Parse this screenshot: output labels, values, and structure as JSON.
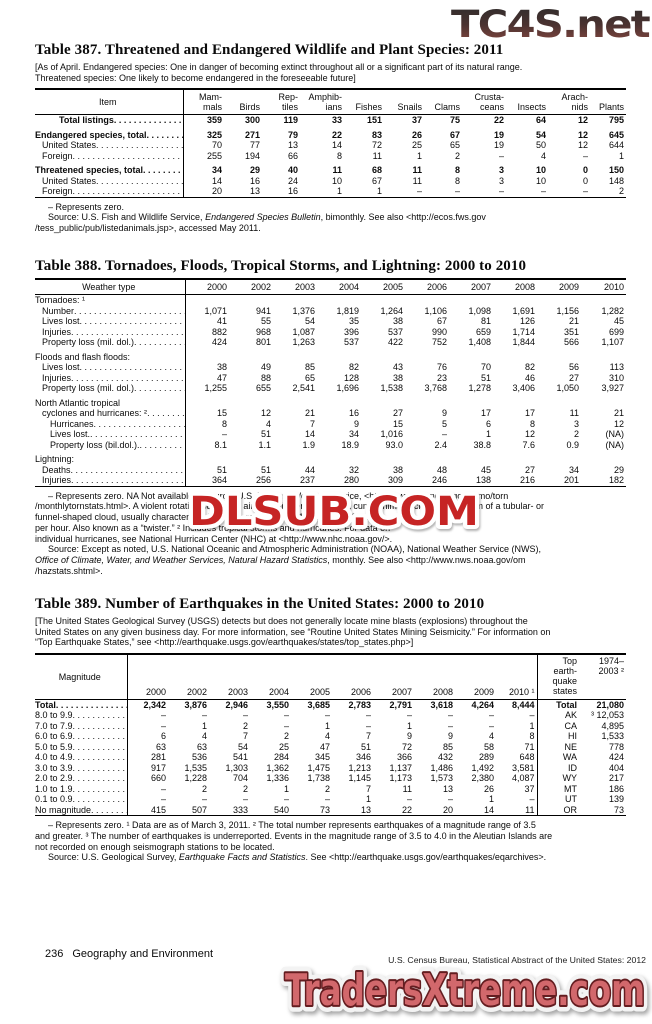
{
  "watermarks": {
    "top": "TC4S.net",
    "middle": "DLSUB.COM",
    "bottom": "TradersXtreme.com"
  },
  "footer": {
    "page_number": "236",
    "section_name": "Geography and Environment",
    "source_line": "U.S. Census Bureau, Statistical Abstract of the United States: 2012"
  },
  "t387": {
    "title": "Table 387. Threatened and Endangered Wildlife and Plant Species: 2011",
    "note": "[As of April. Endangered species: One in danger of becoming extinct  throughout all or a significant part of its natural range.\nThreatened species: One likely to become endangered in the foreseeable future]",
    "headers": [
      "Item",
      "Mam-\nmals",
      "Birds",
      "Rep-\ntiles",
      "Amphib-\nians",
      "Fishes",
      "Snails",
      "Clams",
      "Crusta-\nceans",
      "Insects",
      "Arach-\nnids",
      "Plants"
    ],
    "rows": [
      {
        "label": "Total listings",
        "bold": true,
        "indent": 3,
        "cells": [
          "359",
          "300",
          "119",
          "33",
          "151",
          "37",
          "75",
          "22",
          "64",
          "12",
          "795"
        ]
      },
      {
        "label": "Endangered species, total",
        "bold": true,
        "gap": true,
        "cells": [
          "325",
          "271",
          "79",
          "22",
          "83",
          "26",
          "67",
          "19",
          "54",
          "12",
          "645"
        ]
      },
      {
        "label": "United States",
        "indent": 1,
        "cells": [
          "70",
          "77",
          "13",
          "14",
          "72",
          "25",
          "65",
          "19",
          "50",
          "12",
          "644"
        ]
      },
      {
        "label": "Foreign",
        "indent": 1,
        "cells": [
          "255",
          "194",
          "66",
          "8",
          "11",
          "1",
          "2",
          "–",
          "4",
          "–",
          "1"
        ]
      },
      {
        "label": "Threatened species, total",
        "bold": true,
        "gap": true,
        "cells": [
          "34",
          "29",
          "40",
          "11",
          "68",
          "11",
          "8",
          "3",
          "10",
          "0",
          "150"
        ]
      },
      {
        "label": "United States",
        "indent": 1,
        "cells": [
          "14",
          "16",
          "24",
          "10",
          "67",
          "11",
          "8",
          "3",
          "10",
          "0",
          "148"
        ]
      },
      {
        "label": "Foreign",
        "indent": 1,
        "cells": [
          "20",
          "13",
          "16",
          "1",
          "1",
          "–",
          "–",
          "–",
          "–",
          "–",
          "2"
        ]
      }
    ],
    "footnotes": [
      [
        {
          "t": "– Represents zero."
        }
      ],
      [
        {
          "t": "Source: U.S. Fish and Wildlife Service, "
        },
        {
          "t": "Endangered Species Bulletin",
          "i": true
        },
        {
          "t": ", bimonthly. See also <http://ecos.fws.gov\n/tess_public/pub/listedanimals.jsp>, accessed May 2011."
        }
      ]
    ]
  },
  "t388": {
    "title": "Table 388. Tornadoes, Floods, Tropical Storms, and Lightning: 2000 to 2010",
    "headers": [
      "Weather type",
      "2000",
      "2002",
      "2003",
      "2004",
      "2005",
      "2006",
      "2007",
      "2008",
      "2009",
      "2010"
    ],
    "rows": [
      {
        "label": "Tornadoes: ¹",
        "section": true
      },
      {
        "label": "Number",
        "indent": 1,
        "cells": [
          "1,071",
          "941",
          "1,376",
          "1,819",
          "1,264",
          "1,106",
          "1,098",
          "1,691",
          "1,156",
          "1,282"
        ]
      },
      {
        "label": "Lives lost",
        "indent": 1,
        "cells": [
          "41",
          "55",
          "54",
          "35",
          "38",
          "67",
          "81",
          "126",
          "21",
          "45"
        ]
      },
      {
        "label": "Injuries",
        "indent": 1,
        "cells": [
          "882",
          "968",
          "1,087",
          "396",
          "537",
          "990",
          "659",
          "1,714",
          "351",
          "699"
        ]
      },
      {
        "label": "Property loss (mil. dol.)",
        "indent": 1,
        "cells": [
          "424",
          "801",
          "1,263",
          "537",
          "422",
          "752",
          "1,408",
          "1,844",
          "566",
          "1,107"
        ]
      },
      {
        "label": "Floods and flash floods:",
        "section": true,
        "gap": true
      },
      {
        "label": "Lives lost",
        "indent": 1,
        "cells": [
          "38",
          "49",
          "85",
          "82",
          "43",
          "76",
          "70",
          "82",
          "56",
          "113"
        ]
      },
      {
        "label": "Injuries",
        "indent": 1,
        "cells": [
          "47",
          "88",
          "65",
          "128",
          "38",
          "23",
          "51",
          "46",
          "27",
          "310"
        ]
      },
      {
        "label": "Property loss (mil. dol.)",
        "indent": 1,
        "cells": [
          "1,255",
          "655",
          "2,541",
          "1,696",
          "1,538",
          "3,768",
          "1,278",
          "3,406",
          "1,050",
          "3,927"
        ]
      },
      {
        "label": "North Atlantic tropical",
        "section": true,
        "gap": true
      },
      {
        "label": "cyclones and hurricanes: ²",
        "indent": 1,
        "cells": [
          "15",
          "12",
          "21",
          "16",
          "27",
          "9",
          "17",
          "17",
          "11",
          "21"
        ]
      },
      {
        "label": "Hurricanes",
        "indent": 2,
        "cells": [
          "8",
          "4",
          "7",
          "9",
          "15",
          "5",
          "6",
          "8",
          "3",
          "12"
        ]
      },
      {
        "label": "Lives lost.",
        "indent": 2,
        "cells": [
          "–",
          "51",
          "14",
          "34",
          "1,016",
          "–",
          "1",
          "12",
          "2",
          "(NA)"
        ]
      },
      {
        "label": "Property loss (bil.dol.).",
        "indent": 2,
        "cells": [
          "8.1",
          "1.1",
          "1.9",
          "18.9",
          "93.0",
          "2.4",
          "38.8",
          "7.6",
          "0.9",
          "(NA)"
        ]
      },
      {
        "label": "Lightning:",
        "section": true,
        "gap": true
      },
      {
        "label": "Deaths",
        "indent": 1,
        "cells": [
          "51",
          "51",
          "44",
          "32",
          "38",
          "48",
          "45",
          "27",
          "34",
          "29"
        ]
      },
      {
        "label": "Injuries",
        "indent": 1,
        "cells": [
          "364",
          "256",
          "237",
          "280",
          "309",
          "246",
          "138",
          "216",
          "201",
          "182"
        ]
      }
    ],
    "footnotes": [
      [
        {
          "t": "– Represents zero. NA Not available. ¹ Source: U.S. National Weather Service, <http://www.spc.noaa.gov/climo/torn\n/monthlytornstats.html>. A violent rotating column of air which is pendant from a cumulonimbus cloud, in the form of a tubular- or\nfunnel-shaped cloud, usually characterized by winds ranging from 100 to over 300 miles\nper hour. Also known as a “twister.” ² Includes tropical storms and hurricanes. For data on\nindividual hurricanes, see National Hurrican Center (NHC) at <http://www.nhc.noaa.gov/>."
        }
      ],
      [
        {
          "t": "Source: Except as noted, U.S. National Oceanic and Atmospheric Administration (NOAA), National Weather Service (NWS),\n"
        },
        {
          "t": "Office of Climate, Water, and Weather Services, Natural Hazard Statistics",
          "i": true
        },
        {
          "t": ", monthly. See also <http://www.nws.noaa.gov/om\n/hazstats.shtml>."
        }
      ]
    ]
  },
  "t389": {
    "title": "Table 389. Number of Earthquakes in the United States: 2000 to 2010",
    "note": "[The United States Geological Survey (USGS) detects but does not generally locate mine blasts (explosions) throughout the\nUnited States on any given business day. For more information, see “Routine United States Mining Seismicity.” For information on\n“Top Earthquake States,” see <http://earthquake.usgs.gov/earthquakes/states/top_states.php>]",
    "headers": {
      "magnitude": "Magnitude",
      "years": [
        "2000",
        "2002",
        "2003",
        "2004",
        "2005",
        "2006",
        "2007",
        "2008",
        "2009",
        "2010 ¹"
      ],
      "top_states": "Top earth-\nquake\nstates",
      "period": "1974–\n2003 ²"
    },
    "rows": [
      {
        "label": "Total",
        "bold": true,
        "cells": [
          "2,342",
          "3,876",
          "2,946",
          "3,550",
          "3,685",
          "2,783",
          "2,791",
          "3,618",
          "4,264",
          "8,444"
        ],
        "state": "Total",
        "state_val": "21,080"
      },
      {
        "label": "8.0 to 9.9",
        "cells": [
          "–",
          "–",
          "–",
          "–",
          "–",
          "–",
          "–",
          "–",
          "–",
          "–"
        ],
        "state": "AK",
        "state_val": "³ 12,053"
      },
      {
        "label": "7.0 to 7.9",
        "cells": [
          "–",
          "1",
          "2",
          "–",
          "1",
          "–",
          "1",
          "–",
          "–",
          "1"
        ],
        "state": "CA",
        "state_val": "4,895"
      },
      {
        "label": "6.0 to 6.9",
        "cells": [
          "6",
          "4",
          "7",
          "2",
          "4",
          "7",
          "9",
          "9",
          "4",
          "8"
        ],
        "state": "HI",
        "state_val": "1,533"
      },
      {
        "label": "5.0 to 5.9",
        "cells": [
          "63",
          "63",
          "54",
          "25",
          "47",
          "51",
          "72",
          "85",
          "58",
          "71"
        ],
        "state": "NE",
        "state_val": "778"
      },
      {
        "label": "4.0 to 4.9",
        "cells": [
          "281",
          "536",
          "541",
          "284",
          "345",
          "346",
          "366",
          "432",
          "289",
          "648"
        ],
        "state": "WA",
        "state_val": "424"
      },
      {
        "label": "3.0 to 3.9",
        "cells": [
          "917",
          "1,535",
          "1,303",
          "1,362",
          "1,475",
          "1,213",
          "1,137",
          "1,486",
          "1,492",
          "3,581"
        ],
        "state": "ID",
        "state_val": "404"
      },
      {
        "label": "2.0 to 2.9",
        "cells": [
          "660",
          "1,228",
          "704",
          "1,336",
          "1,738",
          "1,145",
          "1,173",
          "1,573",
          "2,380",
          "4,087"
        ],
        "state": "WY",
        "state_val": "217"
      },
      {
        "label": "1.0 to 1.9",
        "cells": [
          "–",
          "2",
          "2",
          "1",
          "2",
          "7",
          "11",
          "13",
          "26",
          "37"
        ],
        "state": "MT",
        "state_val": "186"
      },
      {
        "label": "0.1 to 0.9",
        "cells": [
          "–",
          "–",
          "–",
          "–",
          "–",
          "1",
          "–",
          "–",
          "1",
          "–"
        ],
        "state": "UT",
        "state_val": "139"
      },
      {
        "label": "No magnitude",
        "cells": [
          "415",
          "507",
          "333",
          "540",
          "73",
          "13",
          "22",
          "20",
          "14",
          "11"
        ],
        "state": "OR",
        "state_val": "73"
      }
    ],
    "footnotes": [
      [
        {
          "t": "– Represents zero. ¹ Data are as of March 3, 2011. ² The total number represents earthquakes of a magnitude range of 3.5\nand greater. ³ The number of earthquakes is underreported. Events in the magnitude range of 3.5 to 4.0 in the Aleutian Islands are\nnot recorded on enough seismograph stations to be located."
        }
      ],
      [
        {
          "t": "Source: U.S. Geological Survey, "
        },
        {
          "t": "Earthquake Facts and Statistics",
          "i": true
        },
        {
          "t": ". See <http://earthquake.usgs.gov/earthquakes/eqarchives>."
        }
      ]
    ]
  }
}
